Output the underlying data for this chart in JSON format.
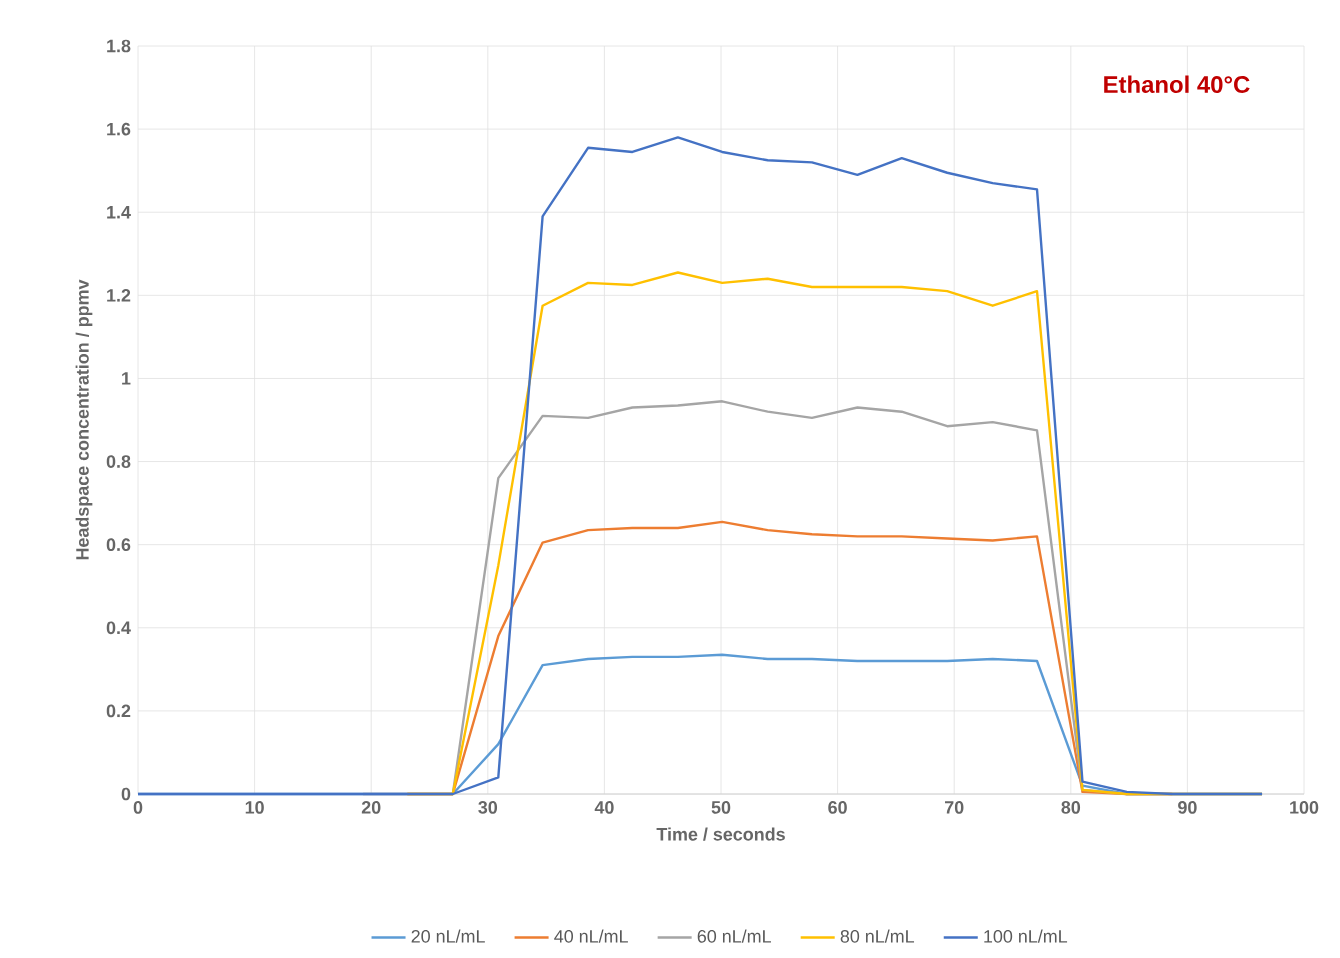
{
  "chart_data": {
    "type": "line",
    "title": "Ethanol 40°C",
    "xlabel": "Time / seconds",
    "ylabel": "Headspace concentration / ppmv",
    "x": [
      0,
      3.9,
      7.7,
      11.6,
      15.4,
      19.3,
      23.1,
      27,
      30.9,
      34.7,
      38.6,
      42.4,
      46.3,
      50.1,
      54,
      57.8,
      61.7,
      65.5,
      69.4,
      73.3,
      77.1,
      81,
      84.8,
      88.7,
      92.5,
      96.4
    ],
    "series": [
      {
        "name": "20 nL/mL",
        "color": "#5b9bd5",
        "values": [
          0,
          0,
          0,
          0,
          0,
          0,
          0,
          0,
          0.12,
          0.31,
          0.325,
          0.33,
          0.33,
          0.335,
          0.325,
          0.325,
          0.32,
          0.32,
          0.32,
          0.325,
          0.32,
          0.02,
          0,
          0,
          0,
          0
        ]
      },
      {
        "name": "40 nL/mL",
        "color": "#ed7d31",
        "values": [
          null,
          null,
          null,
          null,
          null,
          null,
          0,
          0,
          0.38,
          0.605,
          0.635,
          0.64,
          0.64,
          0.655,
          0.635,
          0.625,
          0.62,
          0.62,
          0.615,
          0.61,
          0.62,
          0.005,
          0,
          0,
          null,
          null
        ]
      },
      {
        "name": "60 nL/mL",
        "color": "#a5a5a5",
        "values": [
          null,
          null,
          null,
          null,
          null,
          0,
          0,
          0,
          0.76,
          0.91,
          0.905,
          0.93,
          0.935,
          0.945,
          0.92,
          0.905,
          0.93,
          0.92,
          0.885,
          0.895,
          0.875,
          0.01,
          0,
          0,
          0,
          0
        ]
      },
      {
        "name": "80 nL/mL",
        "color": "#ffc000",
        "values": [
          null,
          null,
          null,
          null,
          null,
          null,
          0,
          0,
          0.55,
          1.175,
          1.23,
          1.225,
          1.255,
          1.23,
          1.24,
          1.22,
          1.22,
          1.22,
          1.21,
          1.175,
          1.21,
          0.01,
          0,
          0,
          0,
          0
        ]
      },
      {
        "name": "100 nL/mL",
        "color": "#4472c4",
        "values": [
          0,
          0,
          0,
          0,
          0,
          0,
          0,
          0,
          0.04,
          1.39,
          1.555,
          1.545,
          1.58,
          1.545,
          1.525,
          1.52,
          1.49,
          1.53,
          1.495,
          1.47,
          1.455,
          0.03,
          0.005,
          0,
          0,
          0
        ]
      }
    ],
    "xlim": [
      0,
      100
    ],
    "xticks": [
      0,
      10,
      20,
      30,
      40,
      50,
      60,
      70,
      80,
      90,
      100
    ],
    "ylim": [
      0,
      1.8
    ],
    "yticks": [
      0,
      0.2,
      0.4,
      0.6,
      0.8,
      1,
      1.2,
      1.4,
      1.6,
      1.8
    ],
    "grid": true,
    "legend": "bottom",
    "marker": "none",
    "line_style": "solid"
  }
}
